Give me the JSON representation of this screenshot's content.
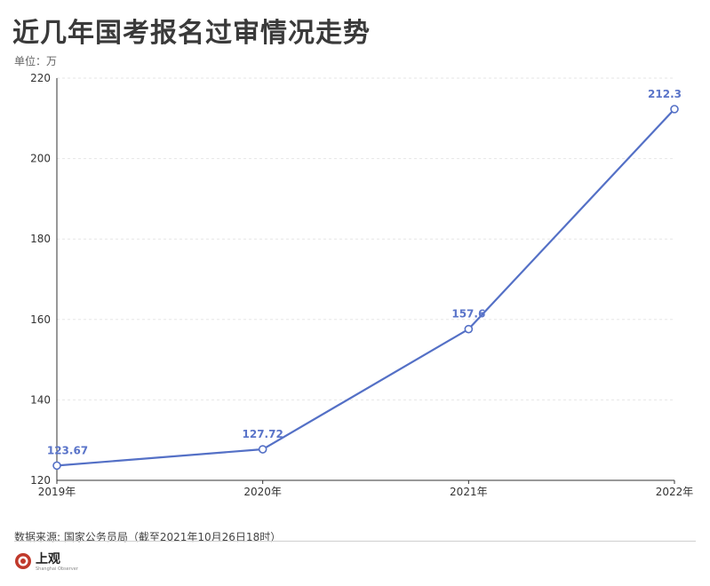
{
  "header": {
    "title": "近几年国考报名过审情况走势",
    "unit": "单位：万"
  },
  "footer": {
    "source": "数据来源: 国家公务员局（截至2021年10月26日18时）",
    "logo_text": "上观",
    "logo_sub": "Shanghai Observer"
  },
  "colors": {
    "line": "#5470c6",
    "label": "#5a74c9",
    "grid": "#e6e6e6",
    "axis": "#333333",
    "logo": "#c0392b"
  },
  "chart_data": {
    "type": "line",
    "categories": [
      "2019年",
      "2020年",
      "2021年",
      "2022年"
    ],
    "series": [
      {
        "values": [
          123.67,
          127.72,
          157.6,
          212.3
        ]
      }
    ],
    "data_labels": [
      "123.67",
      "127.72",
      "157.6",
      "212.3"
    ],
    "ylim": [
      120,
      220
    ],
    "yticks": [
      120,
      140,
      160,
      180,
      200,
      220
    ],
    "ytick_labels": [
      "120",
      "140",
      "160",
      "180",
      "200",
      "220"
    ],
    "grid": true,
    "title": "近几年国考报名过审情况走势",
    "ylabel": "单位：万",
    "xlabel": ""
  }
}
